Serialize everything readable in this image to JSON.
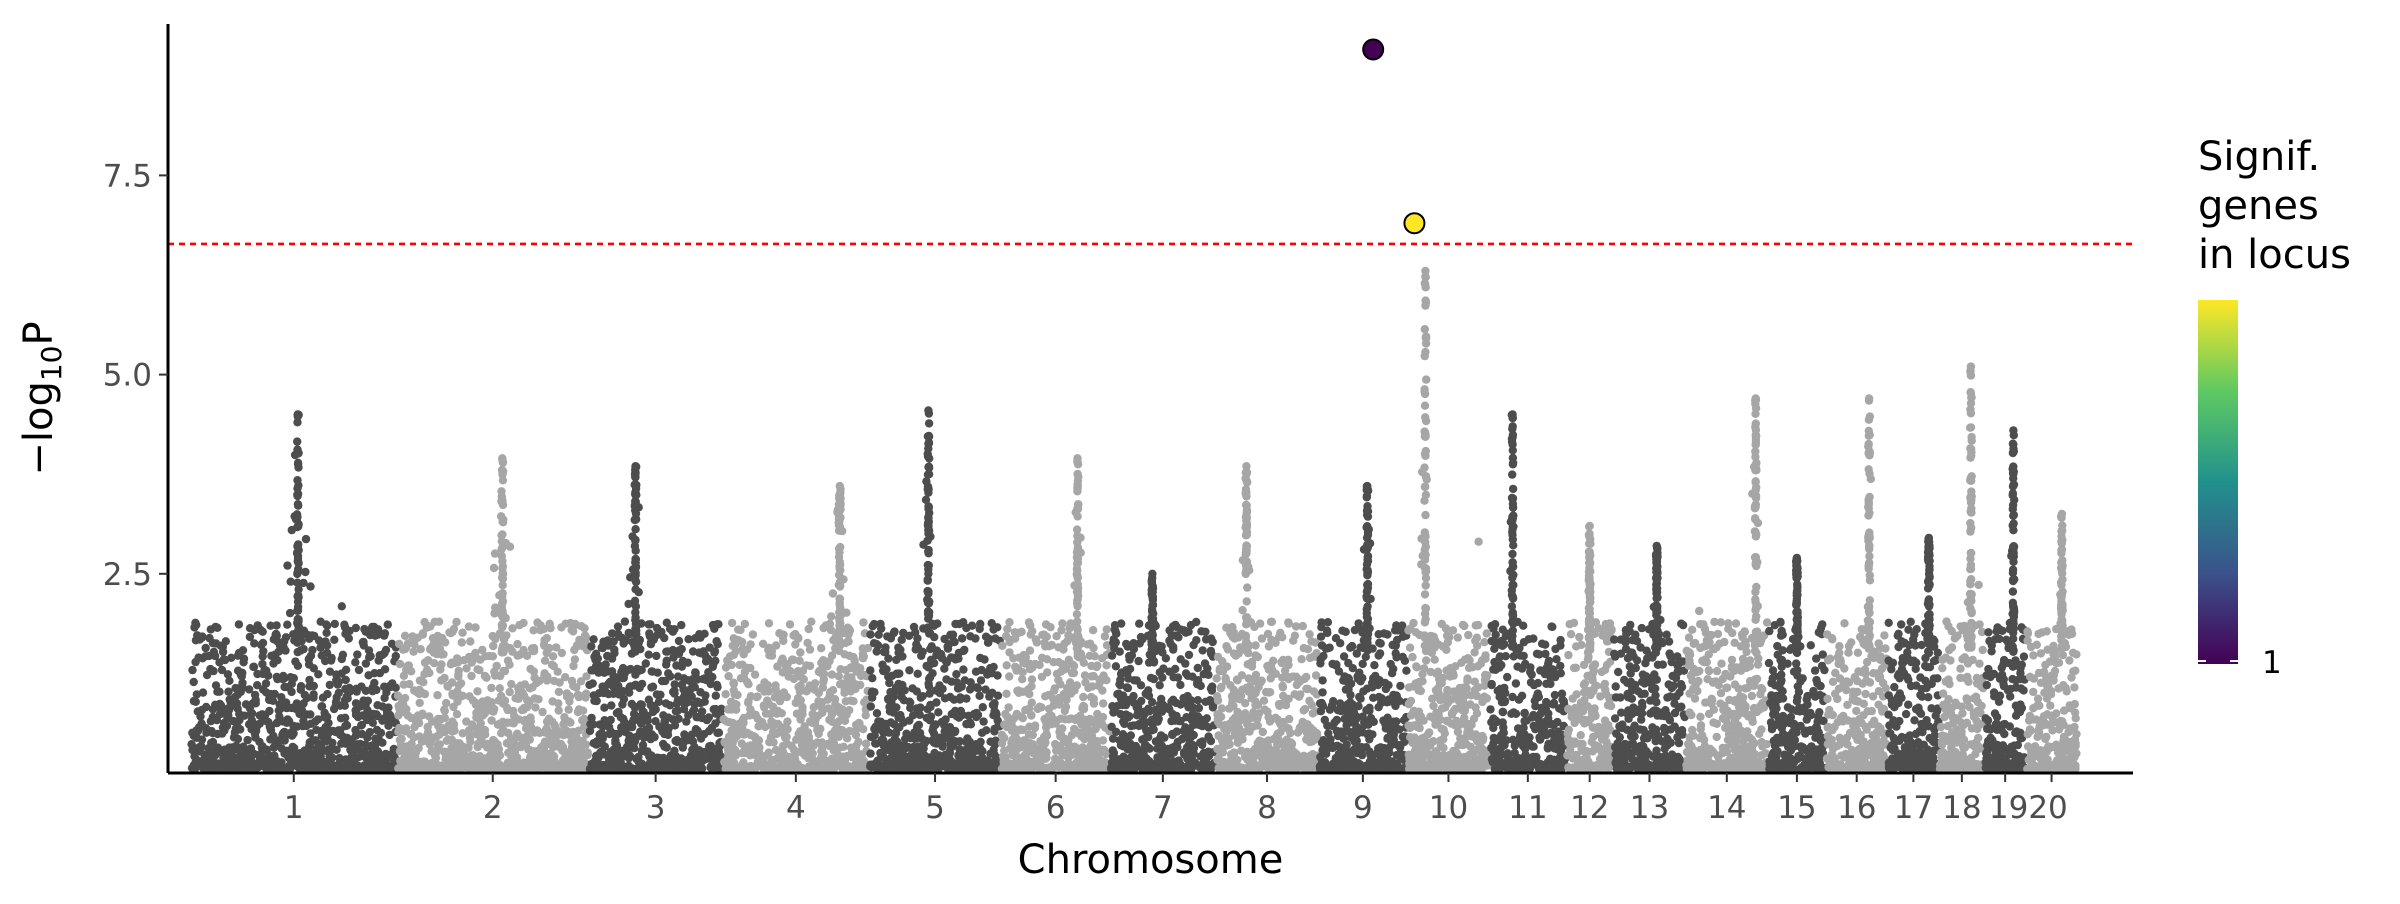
{
  "chart_data": {
    "type": "scatter",
    "subtype": "manhattan",
    "title": "",
    "xlabel": "Chromosome",
    "ylabel": "−log₁₀P",
    "ylabel_parts": {
      "prefix": "−log",
      "sub": "10",
      "suffix": "P"
    },
    "ylim": [
      0,
      9.4
    ],
    "yticks": [
      2.5,
      5.0,
      7.5
    ],
    "ytick_labels": [
      "2.5",
      "5.0",
      "7.5"
    ],
    "grid": false,
    "significance_threshold": 6.64,
    "threshold_color": "#ff0000",
    "point_colors": {
      "odd_chromosomes": "#4d4d4d",
      "even_chromosomes": "#a6a6a6"
    },
    "chromosomes": [
      {
        "label": "1",
        "start": 0.0,
        "end": 100.0,
        "tick": 50.0,
        "peak": 4.5,
        "peak_pos": 0.52
      },
      {
        "label": "2",
        "start": 100.0,
        "end": 193.0,
        "tick": 146.5,
        "peak": 3.95,
        "peak_pos": 0.55
      },
      {
        "label": "3",
        "start": 193.0,
        "end": 258.0,
        "tick": 225.5,
        "peak": 3.85,
        "peak_pos": 0.35
      },
      {
        "label": "4",
        "start": 258.0,
        "end": 329.0,
        "tick": 293.5,
        "peak": 3.6,
        "peak_pos": 0.8
      },
      {
        "label": "5",
        "start": 329.0,
        "end": 393.0,
        "tick": 361.0,
        "peak": 4.55,
        "peak_pos": 0.45
      },
      {
        "label": "6",
        "start": 393.0,
        "end": 446.0,
        "tick": 419.5,
        "peak": 3.95,
        "peak_pos": 0.7
      },
      {
        "label": "7",
        "start": 446.0,
        "end": 497.0,
        "tick": 471.5,
        "peak": 2.5,
        "peak_pos": 0.4
      },
      {
        "label": "8",
        "start": 497.0,
        "end": 547.0,
        "tick": 522.0,
        "peak": 3.85,
        "peak_pos": 0.3
      },
      {
        "label": "9",
        "start": 547.0,
        "end": 590.0,
        "tick": 568.5,
        "peak": 3.6,
        "peak_pos": 0.55
      },
      {
        "label": "10",
        "start": 590.0,
        "end": 630.0,
        "tick": 610.0,
        "peak": 6.3,
        "peak_pos": 0.22
      },
      {
        "label": "11",
        "start": 630.0,
        "end": 667.0,
        "tick": 648.5,
        "peak": 4.5,
        "peak_pos": 0.3
      },
      {
        "label": "12",
        "start": 667.0,
        "end": 690.0,
        "tick": 678.5,
        "peak": 3.1,
        "peak_pos": 0.5
      },
      {
        "label": "13",
        "start": 690.0,
        "end": 725.0,
        "tick": 707.5,
        "peak": 2.85,
        "peak_pos": 0.6
      },
      {
        "label": "14",
        "start": 725.0,
        "end": 765.0,
        "tick": 745.0,
        "peak": 4.7,
        "peak_pos": 0.85
      },
      {
        "label": "15",
        "start": 765.0,
        "end": 793.0,
        "tick": 779.0,
        "peak": 2.7,
        "peak_pos": 0.5
      },
      {
        "label": "16",
        "start": 793.0,
        "end": 823.0,
        "tick": 808.0,
        "peak": 4.7,
        "peak_pos": 0.7
      },
      {
        "label": "17",
        "start": 823.0,
        "end": 848.0,
        "tick": 835.5,
        "peak": 2.95,
        "peak_pos": 0.8
      },
      {
        "label": "18",
        "start": 848.0,
        "end": 870.0,
        "tick": 859.0,
        "peak": 5.1,
        "peak_pos": 0.7
      },
      {
        "label": "19",
        "start": 870.0,
        "end": 890.0,
        "tick": 880.0,
        "peak": 4.3,
        "peak_pos": 0.7
      },
      {
        "label": "20",
        "start": 890.0,
        "end": 915.0,
        "tick": 902.5,
        "peak": 3.25,
        "peak_pos": 0.7
      }
    ],
    "xlim": [
      -11.0,
      942.0
    ],
    "tick_labels_drawn": [
      "1",
      "2",
      "3",
      "4",
      "5",
      "6",
      "7",
      "8",
      "9",
      "10",
      "11",
      "12",
      "13",
      "14",
      "15",
      "16",
      "17",
      "18",
      "1920"
    ],
    "highlighted_loci": [
      {
        "x": 573.5,
        "y": 9.08,
        "genes": 1,
        "color": "#440154"
      },
      {
        "x": 593.5,
        "y": 6.9,
        "genes": null,
        "color": "#fde725"
      }
    ],
    "legend": {
      "title_lines": [
        "Signif.",
        "genes",
        "in locus"
      ],
      "placement": "right",
      "colormap": [
        "#440154",
        "#3b528b",
        "#21918c",
        "#5ec962",
        "#fde725"
      ],
      "tick_label": "1"
    }
  }
}
